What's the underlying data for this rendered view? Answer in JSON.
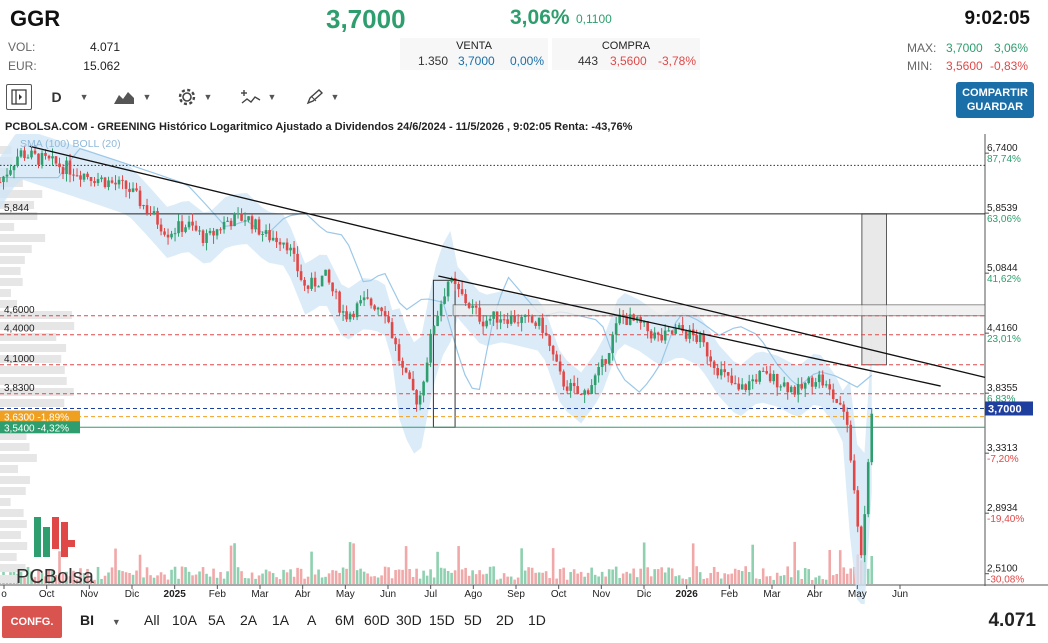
{
  "header": {
    "ticker": "GGR",
    "price": "3,7000",
    "change_pct": "3,06%",
    "change_abs": "0,1100",
    "time": "9:02:05",
    "vol_label": "VOL:",
    "vol_value": "4.071",
    "eur_label": "EUR:",
    "eur_value": "15.062",
    "venta_label": "VENTA",
    "venta_qty": "1.350",
    "venta_price": "3,7000",
    "venta_pct": "0,00%",
    "compra_label": "COMPRA",
    "compra_qty": "443",
    "compra_price": "3,5600",
    "compra_pct": "-3,78%",
    "max_label": "MAX:",
    "max_price": "3,7000",
    "max_pct": "3,06%",
    "min_label": "MIN:",
    "min_price": "3,5600",
    "min_pct": "-0,83%"
  },
  "toolbar": {
    "period": "D",
    "share_line1": "COMPARTIR",
    "share_line2": "GUARDAR"
  },
  "chart_title": "PCBOLSA.COM - GREENING Histórico Logaritmico Ajustado a Dividendos 24/6/2024 - 11/5/2026 , 9:02:05 Renta: -43,76%",
  "indicators_label": "SMA (100) BOLL (20)",
  "logo_text": "PCBolsa",
  "bottom": {
    "config_label": "CONFG.",
    "interval": "BI",
    "ranges": [
      "All",
      "10A",
      "5A",
      "2A",
      "1A",
      "A",
      "6M",
      "60D",
      "30D",
      "15D",
      "5D",
      "2D",
      "1D"
    ],
    "volume": "4.071"
  },
  "colors": {
    "up": "#2e9e6e",
    "down": "#e04848",
    "boll": "#cfe6f6",
    "share_button": "#1a6fa8",
    "config_button": "#d9534f"
  },
  "chart_data": {
    "type": "candlestick",
    "scale": "log",
    "ylim": [
      2.45,
      7.05
    ],
    "x_axis_labels": [
      "o",
      "Oct",
      "Nov",
      "Dic",
      "2025",
      "Feb",
      "Mar",
      "Abr",
      "May",
      "Jun",
      "Jul",
      "Ago",
      "Sep",
      "Oct",
      "Nov",
      "Dic",
      "2026",
      "Feb",
      "Mar",
      "Abr",
      "May",
      "Jun"
    ],
    "y_ticks": [
      {
        "price": 6.74,
        "label": "6,7400",
        "pct": "87,74%"
      },
      {
        "price": 5.8539,
        "label": "5,8539",
        "pct": "63,06%"
      },
      {
        "price": 5.0844,
        "label": "5,0844",
        "pct": "41,62%"
      },
      {
        "price": 4.416,
        "label": "4,4160",
        "pct": "23,01%"
      },
      {
        "price": 3.8355,
        "label": "3,8355",
        "pct": "6,83%"
      },
      {
        "price": 3.3313,
        "label": "3,3313",
        "pct": "-7,20%"
      },
      {
        "price": 2.8934,
        "label": "2,8934",
        "pct": "-19,40%"
      },
      {
        "price": 2.51,
        "label": "2,5100",
        "pct": "-30,08%"
      }
    ],
    "current_price": {
      "price": 3.7,
      "label": "3,7000"
    },
    "levels": [
      {
        "price": 6.55,
        "label": "",
        "style": "dotted",
        "color": "#333333"
      },
      {
        "price": 5.844,
        "label": "5,844",
        "style": "solid",
        "color": "#222222"
      },
      {
        "price": 4.6,
        "label": "4,6000",
        "style": "dashed",
        "color": "#e04848"
      },
      {
        "price": 4.4,
        "label": "4,4000",
        "style": "dashed",
        "color": "#e04848"
      },
      {
        "price": 4.1,
        "label": "4,1000",
        "style": "dashed",
        "color": "#e04848"
      },
      {
        "price": 3.83,
        "label": "3,8300",
        "style": "dashed",
        "color": "#e04848"
      },
      {
        "price": 3.7,
        "label": "",
        "style": "dashed",
        "color": "#1f3f9f"
      },
      {
        "price": 3.63,
        "label": "3,6300 -1,89%",
        "style": "dashed",
        "color": "#f0a020"
      },
      {
        "price": 3.54,
        "label": "3,5400 -4,32%",
        "style": "solid",
        "color": "#2e9e6e"
      }
    ],
    "trendlines": [
      {
        "from": {
          "t": 0.03,
          "price": 6.85
        },
        "to": {
          "t": 1.0,
          "price": 3.98
        }
      },
      {
        "from": {
          "t": 0.445,
          "price": 5.05
        },
        "to": {
          "t": 0.955,
          "price": 3.9
        }
      }
    ],
    "price_path": [
      [
        0.0,
        6.3
      ],
      [
        0.02,
        6.75
      ],
      [
        0.05,
        6.6
      ],
      [
        0.08,
        6.45
      ],
      [
        0.11,
        6.3
      ],
      [
        0.13,
        6.2
      ],
      [
        0.15,
        5.9
      ],
      [
        0.17,
        5.6
      ],
      [
        0.19,
        5.7
      ],
      [
        0.21,
        5.5
      ],
      [
        0.23,
        5.75
      ],
      [
        0.25,
        5.8
      ],
      [
        0.27,
        5.55
      ],
      [
        0.29,
        5.5
      ],
      [
        0.31,
        4.9
      ],
      [
        0.33,
        5.05
      ],
      [
        0.35,
        4.6
      ],
      [
        0.37,
        4.75
      ],
      [
        0.39,
        4.7
      ],
      [
        0.41,
        4.0
      ],
      [
        0.425,
        3.75
      ],
      [
        0.44,
        4.5
      ],
      [
        0.455,
        5.0
      ],
      [
        0.47,
        4.8
      ],
      [
        0.49,
        4.55
      ],
      [
        0.51,
        4.6
      ],
      [
        0.53,
        4.55
      ],
      [
        0.55,
        4.5
      ],
      [
        0.57,
        3.95
      ],
      [
        0.59,
        3.8
      ],
      [
        0.61,
        4.05
      ],
      [
        0.63,
        4.6
      ],
      [
        0.65,
        4.5
      ],
      [
        0.67,
        4.35
      ],
      [
        0.69,
        4.45
      ],
      [
        0.71,
        4.35
      ],
      [
        0.73,
        4.05
      ],
      [
        0.75,
        3.85
      ],
      [
        0.77,
        4.0
      ],
      [
        0.79,
        3.95
      ],
      [
        0.81,
        3.85
      ],
      [
        0.83,
        4.0
      ],
      [
        0.85,
        3.75
      ],
      [
        0.86,
        3.55
      ],
      [
        0.865,
        3.2
      ],
      [
        0.87,
        2.9
      ],
      [
        0.875,
        2.55
      ],
      [
        0.88,
        3.1
      ],
      [
        0.885,
        3.7
      ]
    ]
  }
}
